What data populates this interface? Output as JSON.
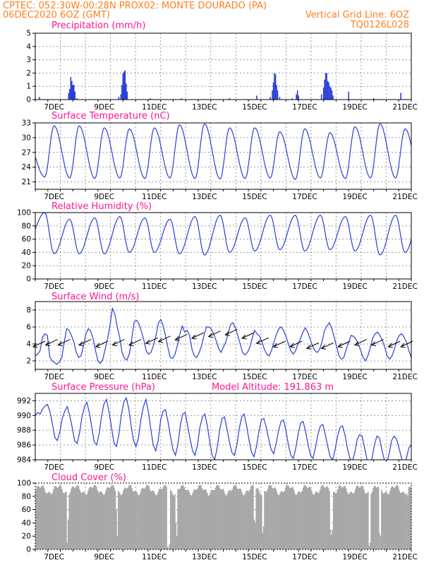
{
  "header": {
    "line1_left": "CPTEC:   052:30W-00:28N   PROX02: MONTE DOURADO (PA)",
    "line2_left": "06DEC2020 6OZ (GMT)",
    "line2_right": "Vertical Grid Line: 6OZ",
    "line3_right": "TQ0126L028"
  },
  "colors": {
    "line": "#2a3fd6",
    "cloud": "#a8a8a8",
    "title": "#ff1493",
    "header": "#ff7f1f"
  },
  "x_tick_labels": [
    "7DEC",
    "9DEC",
    "11DEC",
    "13DEC",
    "15DEC",
    "17DEC",
    "19DEC",
    "21DEC"
  ],
  "chart_data": [
    {
      "type": "bar",
      "title": "Precipitation (mm/h)",
      "ylim": [
        0,
        5
      ],
      "yticks": [
        "0",
        "1",
        "2",
        "3",
        "4",
        "5"
      ],
      "x_range_hours": [
        0,
        360
      ],
      "bars": [
        [
          4,
          0.2
        ],
        [
          32,
          0.5
        ],
        [
          33,
          0.8
        ],
        [
          34,
          1.7
        ],
        [
          35,
          1.4
        ],
        [
          36,
          1.1
        ],
        [
          37,
          1.1
        ],
        [
          38,
          0.6
        ],
        [
          40,
          0.1
        ],
        [
          80,
          0.2
        ],
        [
          82,
          0.4
        ],
        [
          83,
          1.1
        ],
        [
          84,
          2.0
        ],
        [
          85,
          2.1
        ],
        [
          86,
          2.2
        ],
        [
          87,
          1.2
        ],
        [
          88,
          0.6
        ],
        [
          110,
          0.1
        ],
        [
          140,
          0.1
        ],
        [
          186,
          0.1
        ],
        [
          212,
          0.3
        ],
        [
          225,
          0.2
        ],
        [
          227,
          0.7
        ],
        [
          228,
          1.3
        ],
        [
          229,
          2.0
        ],
        [
          230,
          1.9
        ],
        [
          231,
          1.1
        ],
        [
          232,
          0.7
        ],
        [
          234,
          0.2
        ],
        [
          246,
          0.1
        ],
        [
          250,
          0.4
        ],
        [
          251,
          0.7
        ],
        [
          252,
          0.3
        ],
        [
          274,
          0.4
        ],
        [
          276,
          0.9
        ],
        [
          277,
          1.5
        ],
        [
          278,
          2.0
        ],
        [
          279,
          2.0
        ],
        [
          280,
          1.4
        ],
        [
          281,
          1.3
        ],
        [
          282,
          1.0
        ],
        [
          283,
          0.9
        ],
        [
          284,
          0.7
        ],
        [
          285,
          0.3
        ],
        [
          300,
          0.6
        ],
        [
          324,
          0.1
        ],
        [
          350,
          0.5
        ]
      ]
    },
    {
      "type": "line",
      "title": "Surface Temperature (nC)",
      "ylim": [
        19.5,
        33
      ],
      "yticks": [
        "21",
        "24",
        "27",
        "30",
        "33"
      ],
      "diurnal": {
        "min_hour": 9,
        "max_hour": 18,
        "mins": [
          20.3,
          22.0,
          21.8,
          21.7,
          21.8,
          21.7,
          21.8,
          21.7,
          21.6,
          21.7,
          21.8,
          21.5,
          21.8,
          21.7,
          21.8,
          21.8
        ],
        "maxs": [
          28.2,
          32.4,
          32.4,
          32.0,
          31.8,
          32.0,
          32.6,
          32.8,
          32.0,
          32.0,
          31.2,
          31.8,
          31.0,
          32.2,
          32.8,
          31.8
        ]
      }
    },
    {
      "type": "line",
      "title": "Relative Humidity (%)",
      "ylim": [
        0,
        100
      ],
      "yticks": [
        "0",
        "20",
        "40",
        "60",
        "80",
        "100"
      ],
      "diurnal": {
        "min_hour": 18,
        "max_hour": 9,
        "mins": [
          62,
          38,
          38,
          38,
          40,
          40,
          38,
          36,
          40,
          42,
          44,
          42,
          44,
          42,
          36,
          40
        ],
        "maxs": [
          100,
          90,
          92,
          94,
          92,
          90,
          94,
          96,
          92,
          96,
          96,
          96,
          94,
          96,
          96,
          96
        ]
      }
    },
    {
      "type": "line",
      "title": "Surface Wind (m/s)",
      "ylim": [
        1,
        9
      ],
      "yticks": [
        "2",
        "4",
        "6",
        "8"
      ],
      "values": [
        2.6,
        2.8,
        3.2,
        4.8,
        5.2,
        5.0,
        2.5,
        2.0,
        1.8,
        1.6,
        1.9,
        2.4,
        4.2,
        5.8,
        5.6,
        5.0,
        4.2,
        3.0,
        2.4,
        2.6,
        3.8,
        5.2,
        5.8,
        5.5,
        4.6,
        3.2,
        2.0,
        1.7,
        2.2,
        3.4,
        4.6,
        6.2,
        8.2,
        7.5,
        6.0,
        4.8,
        3.0,
        2.3,
        2.1,
        2.8,
        4.6,
        6.6,
        6.8,
        6.4,
        5.5,
        4.5,
        3.2,
        2.8,
        3.0,
        3.8,
        4.9,
        6.4,
        6.9,
        6.2,
        5.0,
        3.6,
        2.4,
        2.3,
        2.8,
        3.9,
        5.2,
        6.1,
        5.4,
        5.6,
        5.0,
        3.4,
        2.6,
        2.4,
        3.0,
        3.8,
        5.0,
        6.0,
        6.0,
        5.8,
        5.2,
        4.4,
        3.5,
        3.0,
        3.6,
        4.2,
        5.2,
        6.3,
        6.5,
        5.9,
        5.0,
        4.0,
        3.0,
        2.7,
        3.0,
        3.6,
        4.7,
        5.6,
        5.2,
        4.9,
        4.3,
        3.4,
        2.8,
        2.6,
        3.2,
        4.2,
        5.1,
        5.8,
        6.0,
        5.6,
        4.9,
        4.0,
        3.2,
        2.8,
        3.2,
        4.0,
        4.6,
        5.4,
        5.9,
        5.4,
        4.6,
        3.8,
        3.2,
        3.0,
        3.4,
        4.3,
        5.6,
        6.1,
        6.5,
        5.8,
        4.8,
        3.7,
        2.6,
        2.2,
        2.4,
        3.4,
        4.2,
        5.0,
        4.9,
        4.6,
        4.0,
        3.2,
        2.4,
        2.0,
        2.6,
        3.6,
        4.7,
        5.2,
        5.4,
        5.0,
        4.4,
        3.6,
        2.6,
        2.2,
        2.6,
        3.4,
        4.4,
        5.0,
        5.2,
        4.8,
        4.2,
        3.2,
        2.4
      ],
      "arrows": [
        {
          "h": 4,
          "s": 4.0
        },
        {
          "h": 16,
          "s": 4.2
        },
        {
          "h": 28,
          "s": 4.2
        },
        {
          "h": 48,
          "s": 4.2
        },
        {
          "h": 64,
          "s": 4.0
        },
        {
          "h": 80,
          "s": 4.2
        },
        {
          "h": 96,
          "s": 4.2
        },
        {
          "h": 112,
          "s": 4.4
        },
        {
          "h": 124,
          "s": 4.6
        },
        {
          "h": 140,
          "s": 4.8
        },
        {
          "h": 156,
          "s": 5.0
        },
        {
          "h": 172,
          "s": 5.2
        },
        {
          "h": 188,
          "s": 5.4
        },
        {
          "h": 204,
          "s": 5.0
        },
        {
          "h": 218,
          "s": 4.4
        },
        {
          "h": 234,
          "s": 4.0
        },
        {
          "h": 250,
          "s": 4.0
        },
        {
          "h": 266,
          "s": 3.8
        },
        {
          "h": 280,
          "s": 3.8
        },
        {
          "h": 296,
          "s": 4.0
        },
        {
          "h": 312,
          "s": 4.2
        },
        {
          "h": 328,
          "s": 4.2
        },
        {
          "h": 344,
          "s": 4.0
        },
        {
          "h": 356,
          "s": 4.0
        }
      ]
    },
    {
      "type": "line",
      "title": "Surface Pressure (hPa)",
      "annotation": "Model Altitude: 191.863 m",
      "ylim": [
        984,
        993
      ],
      "yticks": [
        "984",
        "986",
        "988",
        "990",
        "992"
      ],
      "values": [
        990.0,
        990.4,
        990.2,
        990.9,
        991.3,
        991.5,
        990.5,
        988.8,
        987.0,
        986.6,
        987.8,
        989.6,
        990.6,
        991.2,
        990.0,
        988.4,
        986.6,
        986.2,
        987.6,
        989.8,
        991.2,
        991.8,
        990.4,
        988.4,
        986.4,
        986.0,
        987.6,
        990.0,
        991.6,
        992.2,
        990.5,
        988.4,
        986.3,
        985.8,
        987.4,
        990.0,
        991.8,
        992.4,
        991.0,
        988.6,
        986.6,
        985.8,
        987.0,
        989.5,
        991.2,
        992.2,
        990.6,
        988.2,
        986.0,
        985.2,
        986.6,
        989.4,
        990.6,
        990.8,
        989.2,
        987.2,
        985.4,
        984.6,
        986.0,
        988.6,
        990.2,
        990.4,
        988.6,
        986.8,
        985.2,
        984.6,
        986.0,
        988.4,
        989.8,
        990.2,
        988.6,
        986.4,
        984.6,
        984.0,
        985.6,
        988.0,
        989.6,
        989.8,
        988.2,
        986.4,
        985.0,
        984.6,
        986.0,
        988.2,
        989.8,
        990.2,
        988.6,
        986.6,
        985.0,
        984.4,
        985.8,
        987.8,
        989.4,
        989.6,
        988.4,
        986.8,
        985.4,
        984.8,
        986.2,
        988.0,
        989.2,
        989.4,
        988.0,
        986.0,
        984.6,
        984.2,
        985.6,
        987.6,
        989.0,
        989.2,
        987.8,
        986.0,
        984.6,
        984.2,
        985.6,
        987.4,
        988.6,
        988.8,
        987.4,
        985.8,
        984.4,
        984.0,
        985.4,
        987.2,
        988.4,
        988.6,
        987.4,
        985.6,
        984.2,
        983.8,
        985.0,
        986.8,
        987.4,
        987.2,
        985.6,
        984.0,
        983.2,
        984.2,
        986.0,
        987.2,
        987.0,
        985.4,
        984.0,
        983.6,
        984.8,
        986.6,
        987.2,
        986.8,
        985.6,
        984.2,
        983.4,
        984.2,
        985.6,
        986.0
      ]
    },
    {
      "type": "bar",
      "title": "Cloud Cover (%)",
      "ylim": [
        0,
        100
      ],
      "yticks": [
        "0",
        "20",
        "40",
        "60",
        "80",
        "100"
      ],
      "dips": [
        [
          30,
          10
        ],
        [
          31,
          45
        ],
        [
          77,
          60
        ],
        [
          78,
          20
        ],
        [
          126,
          4
        ],
        [
          127,
          2
        ],
        [
          128,
          8
        ],
        [
          134,
          40
        ],
        [
          135,
          20
        ],
        [
          209,
          45
        ],
        [
          210,
          40
        ],
        [
          217,
          25
        ],
        [
          218,
          35
        ],
        [
          282,
          30
        ],
        [
          283,
          22
        ],
        [
          284,
          30
        ],
        [
          319,
          5
        ],
        [
          320,
          10
        ],
        [
          329,
          25
        ],
        [
          330,
          20
        ],
        [
          356,
          80
        ]
      ]
    }
  ]
}
